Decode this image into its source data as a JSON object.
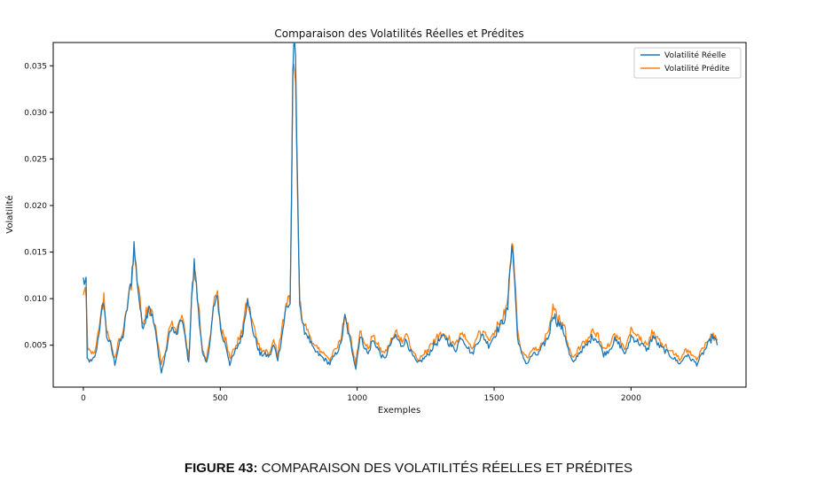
{
  "caption": {
    "label": "FIGURE 43:",
    "text": " COMPARAISON DES VOLATILITÉS RÉELLES ET PRÉDITES"
  },
  "chart_data": {
    "type": "line",
    "title": "Comparaison des Volatilités Réelles et Prédites",
    "xlabel": "Exemples",
    "ylabel": "Volatilité",
    "xlim": [
      -110,
      2420
    ],
    "ylim": [
      0.0005,
      0.0375
    ],
    "xticks": [
      0,
      500,
      1000,
      1500,
      2000
    ],
    "yticks": [
      0.005,
      0.01,
      0.015,
      0.02,
      0.025,
      0.03,
      0.035
    ],
    "ytick_labels": [
      "0.005",
      "0.010",
      "0.015",
      "0.020",
      "0.025",
      "0.030",
      "0.035"
    ],
    "grid": false,
    "legend": "top-right",
    "series": [
      {
        "name": "Volatilité Réelle",
        "color": "#1f77b4",
        "anchors": [
          [
            0,
            0.012
          ],
          [
            10,
            0.0115
          ],
          [
            14,
            0.0035
          ],
          [
            30,
            0.0032
          ],
          [
            45,
            0.004
          ],
          [
            60,
            0.007
          ],
          [
            75,
            0.0098
          ],
          [
            85,
            0.006
          ],
          [
            100,
            0.005
          ],
          [
            115,
            0.003
          ],
          [
            130,
            0.005
          ],
          [
            145,
            0.006
          ],
          [
            160,
            0.009
          ],
          [
            175,
            0.012
          ],
          [
            185,
            0.0157
          ],
          [
            200,
            0.011
          ],
          [
            215,
            0.007
          ],
          [
            230,
            0.008
          ],
          [
            240,
            0.0095
          ],
          [
            260,
            0.007
          ],
          [
            275,
            0.004
          ],
          [
            285,
            0.002
          ],
          [
            300,
            0.004
          ],
          [
            320,
            0.007
          ],
          [
            340,
            0.006
          ],
          [
            360,
            0.008
          ],
          [
            375,
            0.005
          ],
          [
            385,
            0.003
          ],
          [
            395,
            0.01
          ],
          [
            405,
            0.0136
          ],
          [
            420,
            0.009
          ],
          [
            435,
            0.004
          ],
          [
            450,
            0.003
          ],
          [
            465,
            0.006
          ],
          [
            475,
            0.009
          ],
          [
            490,
            0.01
          ],
          [
            505,
            0.006
          ],
          [
            520,
            0.005
          ],
          [
            535,
            0.003
          ],
          [
            550,
            0.004
          ],
          [
            565,
            0.005
          ],
          [
            580,
            0.006
          ],
          [
            590,
            0.008
          ],
          [
            600,
            0.0105
          ],
          [
            615,
            0.007
          ],
          [
            630,
            0.0055
          ],
          [
            645,
            0.004
          ],
          [
            660,
            0.004
          ],
          [
            680,
            0.0038
          ],
          [
            695,
            0.005
          ],
          [
            710,
            0.0035
          ],
          [
            725,
            0.006
          ],
          [
            740,
            0.009
          ],
          [
            755,
            0.0095
          ],
          [
            760,
            0.02
          ],
          [
            765,
            0.035
          ],
          [
            775,
            0.0355
          ],
          [
            783,
            0.02
          ],
          [
            790,
            0.01
          ],
          [
            800,
            0.007
          ],
          [
            820,
            0.006
          ],
          [
            840,
            0.0045
          ],
          [
            860,
            0.004
          ],
          [
            880,
            0.0035
          ],
          [
            900,
            0.003
          ],
          [
            920,
            0.004
          ],
          [
            940,
            0.005
          ],
          [
            955,
            0.008
          ],
          [
            970,
            0.006
          ],
          [
            985,
            0.004
          ],
          [
            995,
            0.0025
          ],
          [
            1010,
            0.006
          ],
          [
            1025,
            0.005
          ],
          [
            1040,
            0.004
          ],
          [
            1055,
            0.0055
          ],
          [
            1070,
            0.005
          ],
          [
            1085,
            0.004
          ],
          [
            1100,
            0.0035
          ],
          [
            1120,
            0.005
          ],
          [
            1140,
            0.006
          ],
          [
            1160,
            0.005
          ],
          [
            1180,
            0.0055
          ],
          [
            1200,
            0.004
          ],
          [
            1220,
            0.003
          ],
          [
            1240,
            0.0035
          ],
          [
            1260,
            0.004
          ],
          [
            1280,
            0.005
          ],
          [
            1300,
            0.0055
          ],
          [
            1320,
            0.006
          ],
          [
            1340,
            0.005
          ],
          [
            1360,
            0.0045
          ],
          [
            1380,
            0.006
          ],
          [
            1400,
            0.005
          ],
          [
            1420,
            0.004
          ],
          [
            1440,
            0.0055
          ],
          [
            1460,
            0.006
          ],
          [
            1480,
            0.005
          ],
          [
            1500,
            0.006
          ],
          [
            1520,
            0.007
          ],
          [
            1540,
            0.008
          ],
          [
            1550,
            0.009
          ],
          [
            1558,
            0.0135
          ],
          [
            1565,
            0.016
          ],
          [
            1575,
            0.012
          ],
          [
            1585,
            0.006
          ],
          [
            1600,
            0.004
          ],
          [
            1620,
            0.003
          ],
          [
            1640,
            0.004
          ],
          [
            1660,
            0.004
          ],
          [
            1680,
            0.005
          ],
          [
            1700,
            0.006
          ],
          [
            1715,
            0.0085
          ],
          [
            1730,
            0.0075
          ],
          [
            1745,
            0.007
          ],
          [
            1760,
            0.006
          ],
          [
            1775,
            0.004
          ],
          [
            1790,
            0.003
          ],
          [
            1805,
            0.004
          ],
          [
            1820,
            0.0045
          ],
          [
            1840,
            0.005
          ],
          [
            1860,
            0.006
          ],
          [
            1880,
            0.0055
          ],
          [
            1900,
            0.004
          ],
          [
            1920,
            0.0045
          ],
          [
            1940,
            0.0055
          ],
          [
            1960,
            0.005
          ],
          [
            1980,
            0.004
          ],
          [
            2000,
            0.006
          ],
          [
            2020,
            0.0055
          ],
          [
            2040,
            0.005
          ],
          [
            2060,
            0.0045
          ],
          [
            2080,
            0.006
          ],
          [
            2100,
            0.005
          ],
          [
            2120,
            0.0045
          ],
          [
            2140,
            0.004
          ],
          [
            2160,
            0.0035
          ],
          [
            2180,
            0.003
          ],
          [
            2200,
            0.004
          ],
          [
            2220,
            0.0035
          ],
          [
            2240,
            0.003
          ],
          [
            2260,
            0.004
          ],
          [
            2280,
            0.005
          ],
          [
            2300,
            0.006
          ],
          [
            2315,
            0.005
          ]
        ]
      },
      {
        "name": "Volatilité Prédite",
        "color": "#ff7f0e",
        "anchors": [
          [
            0,
            0.01
          ],
          [
            10,
            0.011
          ],
          [
            16,
            0.0045
          ],
          [
            30,
            0.004
          ],
          [
            45,
            0.0045
          ],
          [
            60,
            0.0075
          ],
          [
            75,
            0.01
          ],
          [
            85,
            0.0065
          ],
          [
            100,
            0.0055
          ],
          [
            115,
            0.0035
          ],
          [
            130,
            0.0055
          ],
          [
            145,
            0.0065
          ],
          [
            160,
            0.0095
          ],
          [
            175,
            0.0115
          ],
          [
            185,
            0.015
          ],
          [
            200,
            0.0115
          ],
          [
            215,
            0.0075
          ],
          [
            230,
            0.0085
          ],
          [
            240,
            0.009
          ],
          [
            260,
            0.0075
          ],
          [
            275,
            0.0045
          ],
          [
            285,
            0.003
          ],
          [
            300,
            0.0045
          ],
          [
            320,
            0.0075
          ],
          [
            340,
            0.0065
          ],
          [
            360,
            0.0085
          ],
          [
            375,
            0.0055
          ],
          [
            385,
            0.0035
          ],
          [
            395,
            0.0095
          ],
          [
            405,
            0.013
          ],
          [
            420,
            0.0095
          ],
          [
            435,
            0.0045
          ],
          [
            450,
            0.0035
          ],
          [
            465,
            0.0065
          ],
          [
            475,
            0.0095
          ],
          [
            490,
            0.0105
          ],
          [
            505,
            0.0065
          ],
          [
            520,
            0.0055
          ],
          [
            535,
            0.0035
          ],
          [
            550,
            0.0045
          ],
          [
            565,
            0.0055
          ],
          [
            580,
            0.0065
          ],
          [
            590,
            0.0085
          ],
          [
            600,
            0.01
          ],
          [
            615,
            0.0075
          ],
          [
            630,
            0.006
          ],
          [
            645,
            0.0045
          ],
          [
            660,
            0.0045
          ],
          [
            680,
            0.004
          ],
          [
            695,
            0.0055
          ],
          [
            710,
            0.004
          ],
          [
            725,
            0.0065
          ],
          [
            740,
            0.0095
          ],
          [
            755,
            0.01
          ],
          [
            760,
            0.019
          ],
          [
            765,
            0.0345
          ],
          [
            775,
            0.0352
          ],
          [
            783,
            0.021
          ],
          [
            790,
            0.0105
          ],
          [
            800,
            0.0075
          ],
          [
            820,
            0.0065
          ],
          [
            840,
            0.005
          ],
          [
            860,
            0.0045
          ],
          [
            880,
            0.004
          ],
          [
            900,
            0.0035
          ],
          [
            920,
            0.0045
          ],
          [
            940,
            0.0055
          ],
          [
            955,
            0.0085
          ],
          [
            970,
            0.0065
          ],
          [
            985,
            0.0045
          ],
          [
            995,
            0.003
          ],
          [
            1010,
            0.0065
          ],
          [
            1025,
            0.0055
          ],
          [
            1040,
            0.0045
          ],
          [
            1055,
            0.006
          ],
          [
            1070,
            0.0055
          ],
          [
            1085,
            0.0045
          ],
          [
            1100,
            0.004
          ],
          [
            1120,
            0.0055
          ],
          [
            1140,
            0.0065
          ],
          [
            1160,
            0.0055
          ],
          [
            1180,
            0.006
          ],
          [
            1200,
            0.0045
          ],
          [
            1220,
            0.0035
          ],
          [
            1240,
            0.004
          ],
          [
            1260,
            0.0045
          ],
          [
            1280,
            0.0055
          ],
          [
            1300,
            0.006
          ],
          [
            1320,
            0.0065
          ],
          [
            1340,
            0.0055
          ],
          [
            1360,
            0.005
          ],
          [
            1380,
            0.0065
          ],
          [
            1400,
            0.0055
          ],
          [
            1420,
            0.0045
          ],
          [
            1440,
            0.006
          ],
          [
            1460,
            0.0065
          ],
          [
            1480,
            0.0055
          ],
          [
            1500,
            0.0065
          ],
          [
            1520,
            0.0075
          ],
          [
            1540,
            0.0085
          ],
          [
            1550,
            0.0095
          ],
          [
            1558,
            0.013
          ],
          [
            1565,
            0.0163
          ],
          [
            1575,
            0.0125
          ],
          [
            1585,
            0.0065
          ],
          [
            1600,
            0.0045
          ],
          [
            1620,
            0.0035
          ],
          [
            1640,
            0.0045
          ],
          [
            1660,
            0.0045
          ],
          [
            1680,
            0.0055
          ],
          [
            1700,
            0.0065
          ],
          [
            1715,
            0.009
          ],
          [
            1730,
            0.008
          ],
          [
            1745,
            0.0075
          ],
          [
            1760,
            0.0065
          ],
          [
            1775,
            0.0045
          ],
          [
            1790,
            0.0035
          ],
          [
            1805,
            0.0045
          ],
          [
            1820,
            0.005
          ],
          [
            1840,
            0.0055
          ],
          [
            1860,
            0.0065
          ],
          [
            1880,
            0.006
          ],
          [
            1900,
            0.0045
          ],
          [
            1920,
            0.005
          ],
          [
            1940,
            0.006
          ],
          [
            1960,
            0.0055
          ],
          [
            1980,
            0.0045
          ],
          [
            2000,
            0.0065
          ],
          [
            2020,
            0.006
          ],
          [
            2040,
            0.0055
          ],
          [
            2060,
            0.005
          ],
          [
            2080,
            0.0065
          ],
          [
            2100,
            0.0055
          ],
          [
            2120,
            0.005
          ],
          [
            2140,
            0.0045
          ],
          [
            2160,
            0.004
          ],
          [
            2180,
            0.0035
          ],
          [
            2200,
            0.0045
          ],
          [
            2220,
            0.004
          ],
          [
            2240,
            0.0035
          ],
          [
            2260,
            0.0045
          ],
          [
            2280,
            0.0055
          ],
          [
            2300,
            0.006
          ],
          [
            2315,
            0.0055
          ]
        ]
      }
    ]
  }
}
